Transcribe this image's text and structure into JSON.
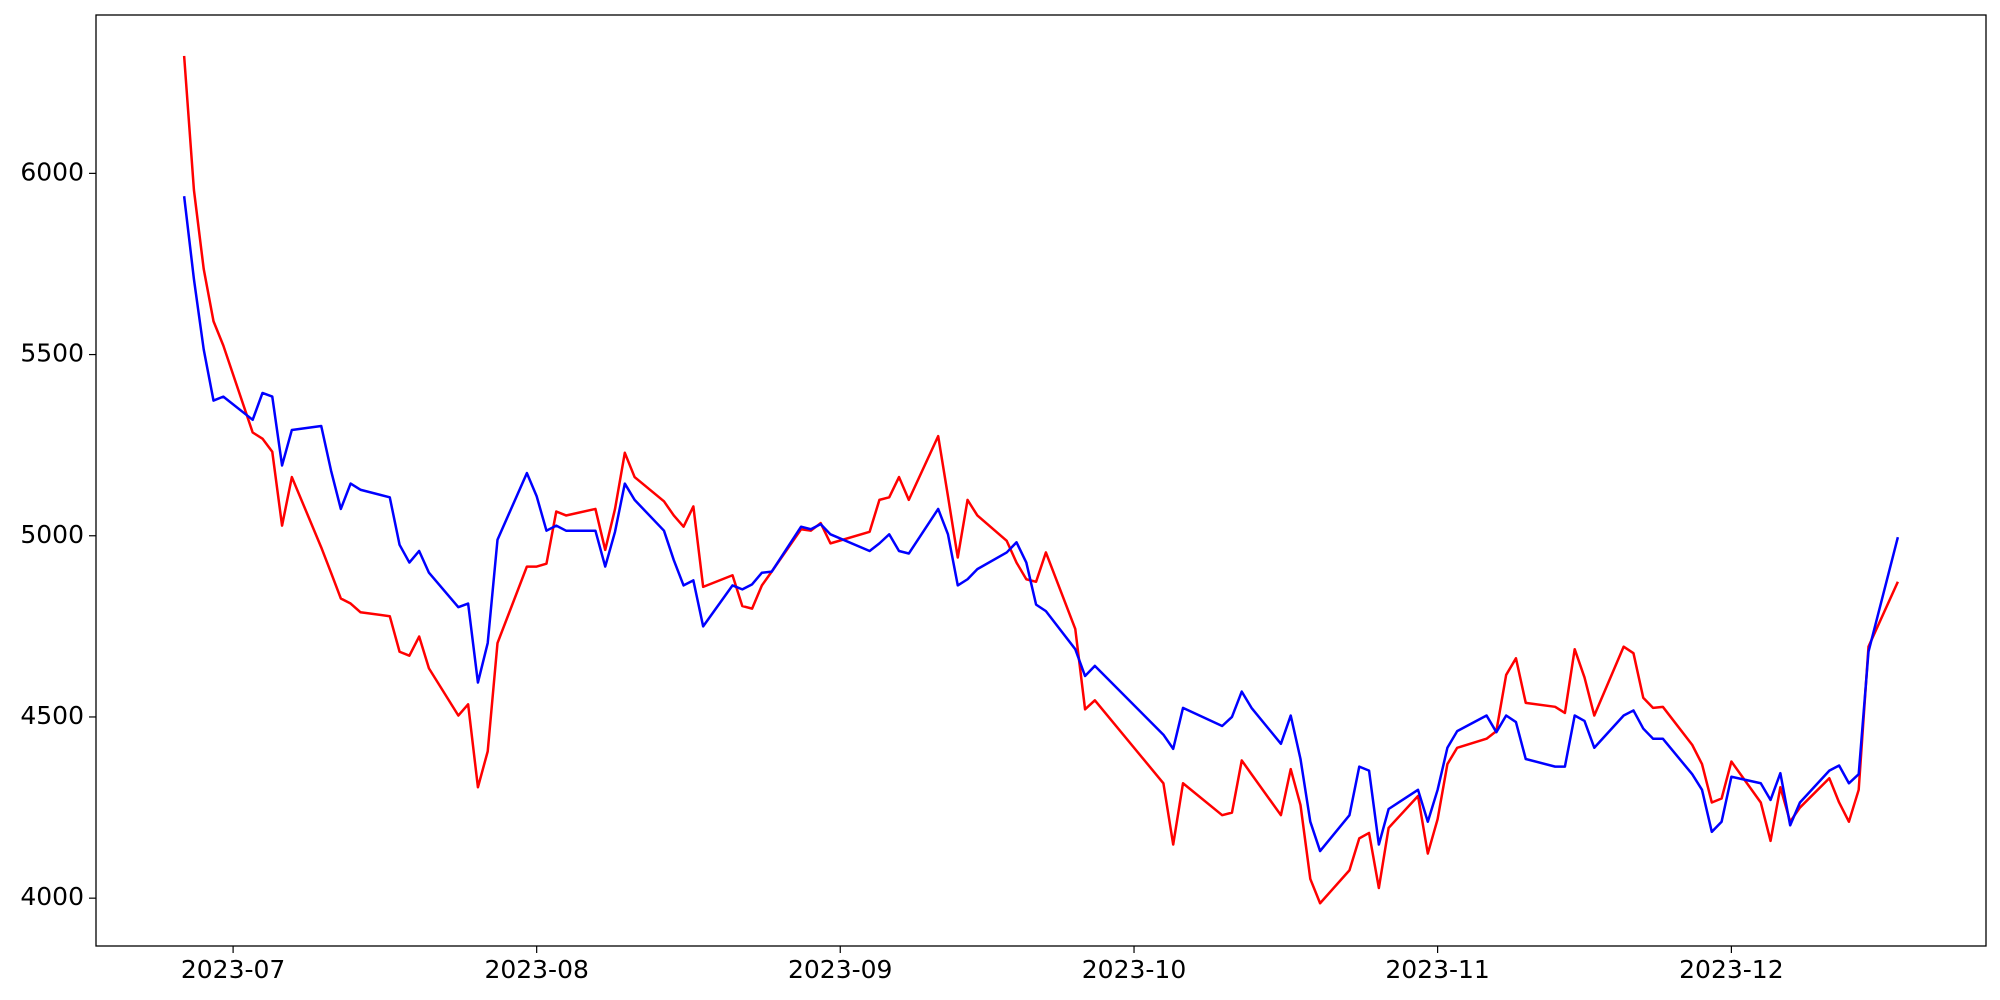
{
  "chart_data": {
    "type": "line",
    "x": [
      "2023-06-26",
      "2023-06-27",
      "2023-06-28",
      "2023-06-29",
      "2023-06-30",
      "2023-07-03",
      "2023-07-04",
      "2023-07-05",
      "2023-07-06",
      "2023-07-07",
      "2023-07-10",
      "2023-07-11",
      "2023-07-12",
      "2023-07-13",
      "2023-07-14",
      "2023-07-17",
      "2023-07-18",
      "2023-07-19",
      "2023-07-20",
      "2023-07-21",
      "2023-07-24",
      "2023-07-25",
      "2023-07-26",
      "2023-07-27",
      "2023-07-28",
      "2023-07-31",
      "2023-08-01",
      "2023-08-02",
      "2023-08-03",
      "2023-08-04",
      "2023-08-07",
      "2023-08-08",
      "2023-08-09",
      "2023-08-10",
      "2023-08-11",
      "2023-08-14",
      "2023-08-15",
      "2023-08-16",
      "2023-08-17",
      "2023-08-18",
      "2023-08-21",
      "2023-08-22",
      "2023-08-23",
      "2023-08-24",
      "2023-08-25",
      "2023-08-28",
      "2023-08-29",
      "2023-08-30",
      "2023-08-31",
      "2023-09-04",
      "2023-09-05",
      "2023-09-06",
      "2023-09-07",
      "2023-09-08",
      "2023-09-11",
      "2023-09-12",
      "2023-09-13",
      "2023-09-14",
      "2023-09-15",
      "2023-09-18",
      "2023-09-19",
      "2023-09-20",
      "2023-09-21",
      "2023-09-22",
      "2023-09-25",
      "2023-09-26",
      "2023-09-27",
      "2023-10-04",
      "2023-10-05",
      "2023-10-06",
      "2023-10-10",
      "2023-10-11",
      "2023-10-12",
      "2023-10-13",
      "2023-10-16",
      "2023-10-17",
      "2023-10-18",
      "2023-10-19",
      "2023-10-20",
      "2023-10-23",
      "2023-10-24",
      "2023-10-25",
      "2023-10-26",
      "2023-10-27",
      "2023-10-30",
      "2023-10-31",
      "2023-11-01",
      "2023-11-02",
      "2023-11-03",
      "2023-11-06",
      "2023-11-07",
      "2023-11-08",
      "2023-11-09",
      "2023-11-10",
      "2023-11-13",
      "2023-11-14",
      "2023-11-15",
      "2023-11-16",
      "2023-11-17",
      "2023-11-20",
      "2023-11-21",
      "2023-11-22",
      "2023-11-23",
      "2023-11-24",
      "2023-11-27",
      "2023-11-28",
      "2023-11-29",
      "2023-11-30",
      "2023-12-01",
      "2023-12-04",
      "2023-12-05",
      "2023-12-06",
      "2023-12-07",
      "2023-12-08",
      "2023-12-11",
      "2023-12-12",
      "2023-12-13",
      "2023-12-14",
      "2023-12-15",
      "2023-12-18"
    ],
    "series": [
      {
        "color": "#ff0000",
        "values": [
          6324,
          5954,
          5736,
          5592,
          5525,
          5285,
          5268,
          5232,
          5028,
          5162,
          4968,
          4898,
          4827,
          4813,
          4789,
          4778,
          4680,
          4669,
          4722,
          4634,
          4504,
          4535,
          4306,
          4405,
          4704,
          4915,
          4915,
          4923,
          5067,
          5056,
          5074,
          4961,
          5074,
          5229,
          5162,
          5095,
          5056,
          5025,
          5081,
          4859,
          4891,
          4806,
          4799,
          4863,
          4901,
          5018,
          5014,
          5035,
          4979,
          5011,
          5099,
          5106,
          5162,
          5099,
          5275,
          5109,
          4940,
          5099,
          5056,
          4986,
          4926,
          4880,
          4873,
          4954,
          4743,
          4521,
          4546,
          4317,
          4148,
          4317,
          4229,
          4236,
          4380,
          4342,
          4229,
          4356,
          4257,
          4053,
          3986,
          4077,
          4165,
          4180,
          4028,
          4194,
          4282,
          4123,
          4218,
          4370,
          4415,
          4440,
          4461,
          4616,
          4662,
          4539,
          4528,
          4511,
          4687,
          4609,
          4504,
          4694,
          4676,
          4553,
          4525,
          4528,
          4423,
          4370,
          4264,
          4275,
          4377,
          4264,
          4158,
          4306,
          4211,
          4250,
          4331,
          4264,
          4211,
          4299,
          4694,
          4873
        ]
      },
      {
        "color": "#0000ff",
        "values": [
          5937,
          5708,
          5514,
          5373,
          5384,
          5320,
          5394,
          5384,
          5194,
          5292,
          5303,
          5180,
          5074,
          5144,
          5127,
          5106,
          4975,
          4926,
          4958,
          4898,
          4803,
          4813,
          4595,
          4704,
          4989,
          5173,
          5109,
          5014,
          5028,
          5014,
          5014,
          4915,
          5011,
          5144,
          5099,
          5014,
          4933,
          4863,
          4877,
          4750,
          4863,
          4852,
          4866,
          4898,
          4901,
          5025,
          5018,
          5032,
          5004,
          4958,
          4979,
          5004,
          4958,
          4951,
          5074,
          5004,
          4863,
          4880,
          4908,
          4954,
          4982,
          4926,
          4810,
          4792,
          4687,
          4613,
          4641,
          4451,
          4412,
          4525,
          4475,
          4500,
          4570,
          4525,
          4426,
          4504,
          4384,
          4211,
          4130,
          4229,
          4363,
          4352,
          4148,
          4246,
          4299,
          4211,
          4299,
          4415,
          4461,
          4504,
          4458,
          4504,
          4486,
          4384,
          4363,
          4363,
          4504,
          4489,
          4415,
          4504,
          4518,
          4468,
          4440,
          4440,
          4342,
          4299,
          4183,
          4211,
          4335,
          4317,
          4271,
          4345,
          4201,
          4264,
          4352,
          4366,
          4317,
          4342,
          4680,
          4996
        ]
      }
    ],
    "xlim": [
      "2023-06-17",
      "2023-12-27"
    ],
    "xticks": [
      {
        "value": "2023-07-01",
        "label": "2023-07"
      },
      {
        "value": "2023-08-01",
        "label": "2023-08"
      },
      {
        "value": "2023-09-01",
        "label": "2023-09"
      },
      {
        "value": "2023-10-01",
        "label": "2023-10"
      },
      {
        "value": "2023-11-01",
        "label": "2023-11"
      },
      {
        "value": "2023-12-01",
        "label": "2023-12"
      }
    ],
    "ylim": [
      3868,
      6437
    ],
    "yticks": [
      4000,
      4500,
      5000,
      5500,
      6000
    ],
    "grid": false
  }
}
